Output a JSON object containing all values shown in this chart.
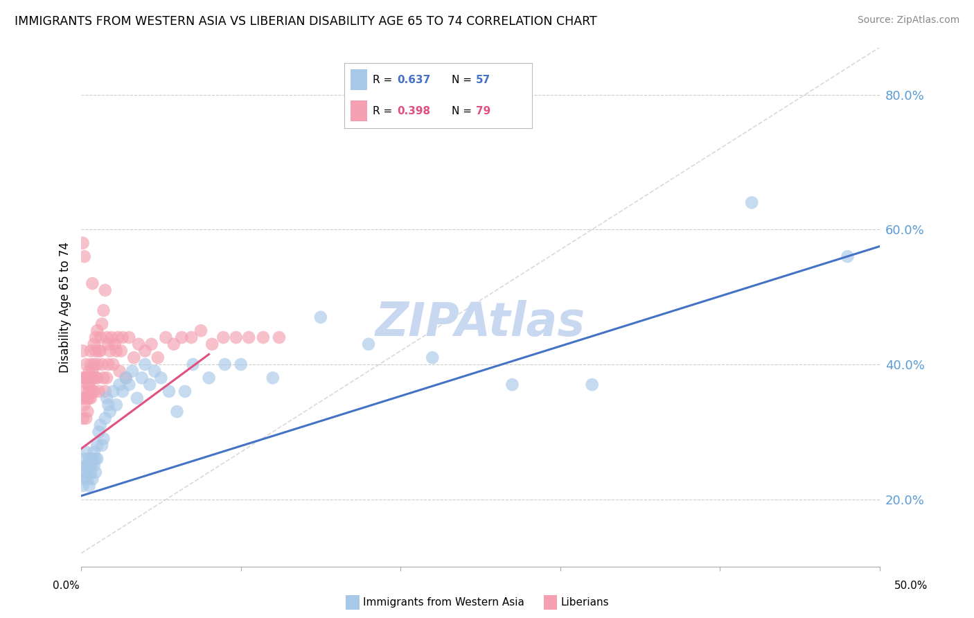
{
  "title": "IMMIGRANTS FROM WESTERN ASIA VS LIBERIAN DISABILITY AGE 65 TO 74 CORRELATION CHART",
  "source": "Source: ZipAtlas.com",
  "ylabel": "Disability Age 65 to 74",
  "yticks": [
    0.2,
    0.4,
    0.6,
    0.8
  ],
  "ytick_labels": [
    "20.0%",
    "40.0%",
    "60.0%",
    "80.0%"
  ],
  "xmin": 0.0,
  "xmax": 0.5,
  "ymin": 0.1,
  "ymax": 0.87,
  "legend_r1": "R = 0.637",
  "legend_n1": "N = 57",
  "legend_r2": "R = 0.398",
  "legend_n2": "N = 79",
  "blue_color": "#a8c8e8",
  "pink_color": "#f4a0b0",
  "line_blue": "#4472c4",
  "line_pink": "#e05080",
  "diag_color": "#cccccc",
  "watermark": "ZIPAtlas",
  "watermark_color": "#c8d8f0",
  "blue_scatter_x": [
    0.001,
    0.001,
    0.002,
    0.002,
    0.003,
    0.003,
    0.003,
    0.004,
    0.004,
    0.005,
    0.005,
    0.006,
    0.006,
    0.007,
    0.007,
    0.008,
    0.008,
    0.009,
    0.009,
    0.01,
    0.01,
    0.011,
    0.012,
    0.013,
    0.014,
    0.015,
    0.016,
    0.017,
    0.018,
    0.02,
    0.022,
    0.024,
    0.026,
    0.028,
    0.03,
    0.032,
    0.035,
    0.038,
    0.04,
    0.043,
    0.046,
    0.05,
    0.055,
    0.06,
    0.065,
    0.07,
    0.08,
    0.09,
    0.1,
    0.12,
    0.15,
    0.18,
    0.22,
    0.27,
    0.32,
    0.42,
    0.48
  ],
  "blue_scatter_y": [
    0.24,
    0.22,
    0.26,
    0.23,
    0.25,
    0.24,
    0.27,
    0.23,
    0.25,
    0.26,
    0.22,
    0.25,
    0.24,
    0.26,
    0.23,
    0.27,
    0.25,
    0.24,
    0.26,
    0.28,
    0.26,
    0.3,
    0.31,
    0.28,
    0.29,
    0.32,
    0.35,
    0.34,
    0.33,
    0.36,
    0.34,
    0.37,
    0.36,
    0.38,
    0.37,
    0.39,
    0.35,
    0.38,
    0.4,
    0.37,
    0.39,
    0.38,
    0.36,
    0.33,
    0.36,
    0.4,
    0.38,
    0.4,
    0.4,
    0.38,
    0.47,
    0.43,
    0.41,
    0.37,
    0.37,
    0.64,
    0.56
  ],
  "pink_scatter_x": [
    0.001,
    0.001,
    0.001,
    0.001,
    0.001,
    0.002,
    0.002,
    0.002,
    0.002,
    0.003,
    0.003,
    0.003,
    0.003,
    0.004,
    0.004,
    0.004,
    0.004,
    0.005,
    0.005,
    0.005,
    0.005,
    0.006,
    0.006,
    0.006,
    0.006,
    0.007,
    0.007,
    0.007,
    0.007,
    0.008,
    0.008,
    0.008,
    0.009,
    0.009,
    0.009,
    0.01,
    0.01,
    0.01,
    0.011,
    0.011,
    0.012,
    0.012,
    0.013,
    0.013,
    0.014,
    0.014,
    0.015,
    0.015,
    0.016,
    0.016,
    0.017,
    0.017,
    0.018,
    0.019,
    0.02,
    0.021,
    0.022,
    0.023,
    0.024,
    0.025,
    0.026,
    0.028,
    0.03,
    0.033,
    0.036,
    0.04,
    0.044,
    0.048,
    0.053,
    0.058,
    0.063,
    0.069,
    0.075,
    0.082,
    0.089,
    0.097,
    0.105,
    0.114,
    0.124
  ],
  "pink_scatter_y": [
    0.35,
    0.38,
    0.58,
    0.42,
    0.32,
    0.36,
    0.38,
    0.56,
    0.34,
    0.38,
    0.35,
    0.4,
    0.32,
    0.37,
    0.35,
    0.38,
    0.33,
    0.37,
    0.35,
    0.39,
    0.36,
    0.38,
    0.42,
    0.35,
    0.4,
    0.38,
    0.52,
    0.36,
    0.39,
    0.36,
    0.43,
    0.4,
    0.44,
    0.38,
    0.42,
    0.38,
    0.45,
    0.4,
    0.42,
    0.36,
    0.44,
    0.42,
    0.46,
    0.4,
    0.48,
    0.38,
    0.51,
    0.36,
    0.44,
    0.38,
    0.43,
    0.4,
    0.42,
    0.44,
    0.4,
    0.43,
    0.42,
    0.44,
    0.39,
    0.42,
    0.44,
    0.38,
    0.44,
    0.41,
    0.43,
    0.42,
    0.43,
    0.41,
    0.44,
    0.43,
    0.44,
    0.44,
    0.45,
    0.43,
    0.44,
    0.44,
    0.44,
    0.44,
    0.44
  ],
  "blue_line_x0": 0.0,
  "blue_line_y0": 0.205,
  "blue_line_x1": 0.5,
  "blue_line_y1": 0.575,
  "pink_line_x0": 0.0,
  "pink_line_y0": 0.275,
  "pink_line_x1": 0.08,
  "pink_line_y1": 0.415
}
